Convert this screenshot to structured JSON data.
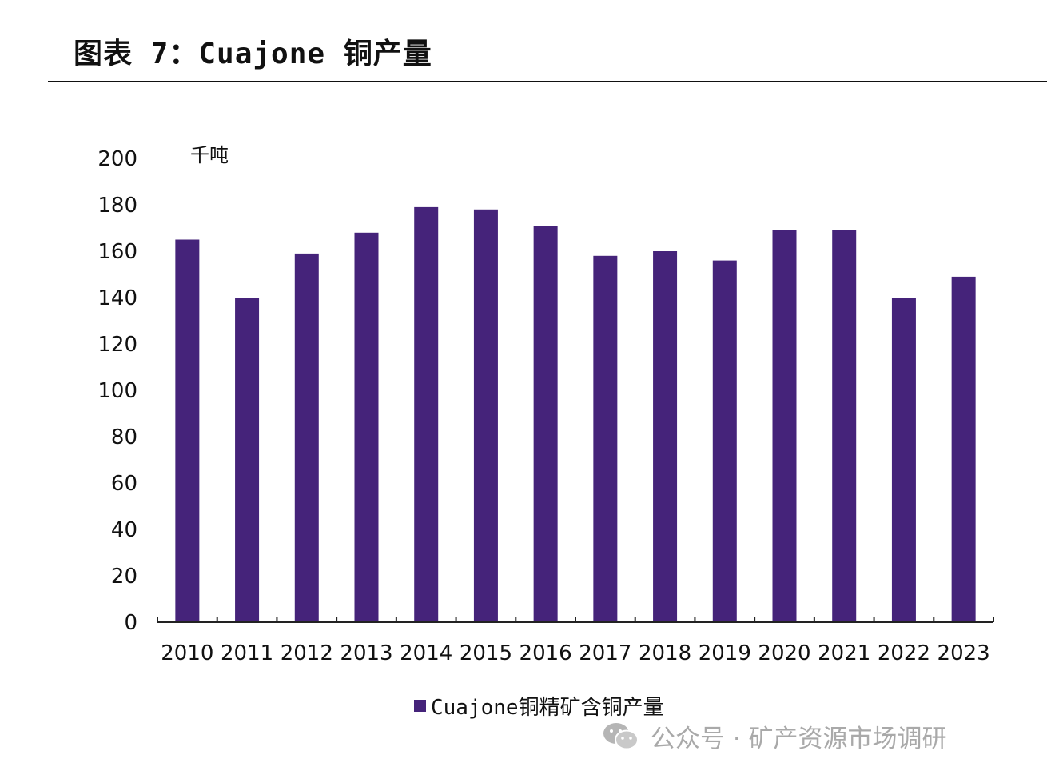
{
  "title": "图表 7：Cuajone 铜产量",
  "colors": {
    "bar": "#45237a",
    "axis": "#222222"
  },
  "chart_data": {
    "type": "bar",
    "title": "图表 7：Cuajone 铜产量",
    "unit_label": "千吨",
    "xlabel": "",
    "ylabel": "千吨",
    "categories": [
      "2010",
      "2011",
      "2012",
      "2013",
      "2014",
      "2015",
      "2016",
      "2017",
      "2018",
      "2019",
      "2020",
      "2021",
      "2022",
      "2023"
    ],
    "series": [
      {
        "name": "Cuajone铜精矿含铜产量",
        "values": [
          165,
          140,
          159,
          168,
          179,
          178,
          171,
          158,
          160,
          156,
          169,
          169,
          140,
          149
        ]
      }
    ],
    "ylim": [
      0,
      200
    ],
    "yticks": [
      "0",
      "20",
      "40",
      "60",
      "80",
      "100",
      "120",
      "140",
      "160",
      "180",
      "200"
    ],
    "grid": false,
    "legend": "bottom-center"
  },
  "legend": {
    "label": "Cuajone铜精矿含铜产量"
  },
  "watermark": {
    "icon": "wechat-icon",
    "text": "公众号 · 矿产资源市场调研"
  }
}
